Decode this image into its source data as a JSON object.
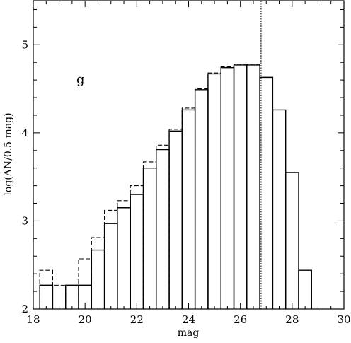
{
  "chart_data": {
    "type": "line",
    "step": true,
    "xlabel": "mag",
    "ylabel": "log(ΔN/0.5 mag)",
    "annotation": "g",
    "xlim": [
      18,
      30
    ],
    "ylim": [
      2,
      5.5
    ],
    "x_ticks": [
      18,
      20,
      22,
      24,
      26,
      28,
      30
    ],
    "y_ticks": [
      2,
      3,
      4,
      5
    ],
    "x_minor_step": 0.5,
    "y_minor_step": 0.2,
    "grid": false,
    "vertical_line": 26.8,
    "series": [
      {
        "style": "solid",
        "bins": [
          {
            "x0": 18.25,
            "x1": 18.75,
            "y": 2.27
          },
          {
            "x0": 19.25,
            "x1": 19.75,
            "y": 2.27
          },
          {
            "x0": 19.75,
            "x1": 20.25,
            "y": 2.27
          },
          {
            "x0": 20.25,
            "x1": 20.75,
            "y": 2.67
          },
          {
            "x0": 20.75,
            "x1": 21.25,
            "y": 2.97
          },
          {
            "x0": 21.25,
            "x1": 21.75,
            "y": 3.15
          },
          {
            "x0": 21.75,
            "x1": 22.25,
            "y": 3.3
          },
          {
            "x0": 22.25,
            "x1": 22.75,
            "y": 3.6
          },
          {
            "x0": 22.75,
            "x1": 23.25,
            "y": 3.81
          },
          {
            "x0": 23.25,
            "x1": 23.75,
            "y": 4.02
          },
          {
            "x0": 23.75,
            "x1": 24.25,
            "y": 4.26
          },
          {
            "x0": 24.25,
            "x1": 24.75,
            "y": 4.49
          },
          {
            "x0": 24.75,
            "x1": 25.25,
            "y": 4.67
          },
          {
            "x0": 25.25,
            "x1": 25.75,
            "y": 4.74
          },
          {
            "x0": 25.75,
            "x1": 26.25,
            "y": 4.77
          },
          {
            "x0": 26.25,
            "x1": 26.75,
            "y": 4.77
          },
          {
            "x0": 26.75,
            "x1": 27.25,
            "y": 4.63
          },
          {
            "x0": 27.25,
            "x1": 27.75,
            "y": 4.26
          },
          {
            "x0": 27.75,
            "x1": 28.25,
            "y": 3.55
          },
          {
            "x0": 28.25,
            "x1": 28.75,
            "y": 2.44
          }
        ]
      },
      {
        "style": "dashed",
        "bins": [
          {
            "x0": 18.25,
            "x1": 18.75,
            "y": 2.44
          },
          {
            "x0": 18.75,
            "x1": 19.25,
            "y": 2.27
          },
          {
            "x0": 19.25,
            "x1": 19.75,
            "y": 2.27
          },
          {
            "x0": 19.75,
            "x1": 20.25,
            "y": 2.57
          },
          {
            "x0": 20.25,
            "x1": 20.75,
            "y": 2.81
          },
          {
            "x0": 20.75,
            "x1": 21.25,
            "y": 3.12
          },
          {
            "x0": 21.25,
            "x1": 21.75,
            "y": 3.23
          },
          {
            "x0": 21.75,
            "x1": 22.25,
            "y": 3.4
          },
          {
            "x0": 22.25,
            "x1": 22.75,
            "y": 3.67
          },
          {
            "x0": 22.75,
            "x1": 23.25,
            "y": 3.86
          },
          {
            "x0": 23.25,
            "x1": 23.75,
            "y": 4.04
          },
          {
            "x0": 23.75,
            "x1": 24.25,
            "y": 4.28
          },
          {
            "x0": 24.25,
            "x1": 24.75,
            "y": 4.5
          },
          {
            "x0": 24.75,
            "x1": 25.25,
            "y": 4.68
          },
          {
            "x0": 25.25,
            "x1": 25.75,
            "y": 4.75
          },
          {
            "x0": 25.75,
            "x1": 26.25,
            "y": 4.78
          },
          {
            "x0": 26.25,
            "x1": 26.75,
            "y": 4.78
          }
        ]
      }
    ]
  }
}
